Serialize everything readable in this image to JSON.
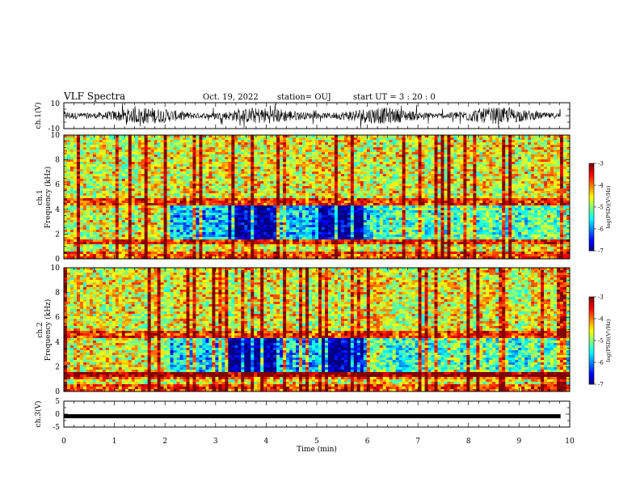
{
  "header": {
    "title": "VLF Spectra",
    "date": "Oct. 19, 2022",
    "station": "station= OUJ",
    "start": "start  UT =   3 : 20 : 0"
  },
  "chart_data": [
    {
      "type": "line",
      "name": "ch.1 waveform",
      "ylabel": "ch.1(V)",
      "ylim": [
        -10,
        10
      ],
      "yticks": [
        "10",
        "-10"
      ],
      "x_range_min": [
        0,
        9.82
      ]
    },
    {
      "type": "heatmap",
      "name": "ch.1 spectrogram",
      "ylabel_line1": "ch.1",
      "ylabel_line2": "Frequency (kHz)",
      "ylim": [
        0,
        10
      ],
      "yticks": [
        "0",
        "2",
        "4",
        "6",
        "8",
        "10"
      ],
      "colorbar": {
        "label": "log(PSD)(V²/Hz)",
        "range": [
          -7,
          -3
        ],
        "ticks": [
          "-3",
          "-4",
          "-5",
          "-6",
          "-7"
        ]
      }
    },
    {
      "type": "heatmap",
      "name": "ch.2 spectrogram",
      "ylabel_line1": "ch.2",
      "ylabel_line2": "Frequency (kHz)",
      "ylim": [
        0,
        10
      ],
      "yticks": [
        "0",
        "2",
        "4",
        "6",
        "8",
        "10"
      ],
      "colorbar": {
        "label": "log(PSD)(V²/Hz)",
        "range": [
          -7,
          -3
        ],
        "ticks": [
          "-3",
          "-4",
          "-5",
          "-6",
          "-7"
        ]
      }
    },
    {
      "type": "line",
      "name": "ch.3 signal",
      "ylabel": "ch.3(V)",
      "ylim": [
        -5,
        5
      ],
      "yticks": [
        "5",
        "0",
        "-5"
      ],
      "level_v": -0.8
    }
  ],
  "xaxis": {
    "label": "Time (min)",
    "range": [
      0,
      10
    ],
    "ticks": [
      "0",
      "1",
      "2",
      "3",
      "4",
      "5",
      "6",
      "7",
      "8",
      "9",
      "10"
    ]
  },
  "colors": {
    "axes": "#000000",
    "background": "#ffffff"
  }
}
